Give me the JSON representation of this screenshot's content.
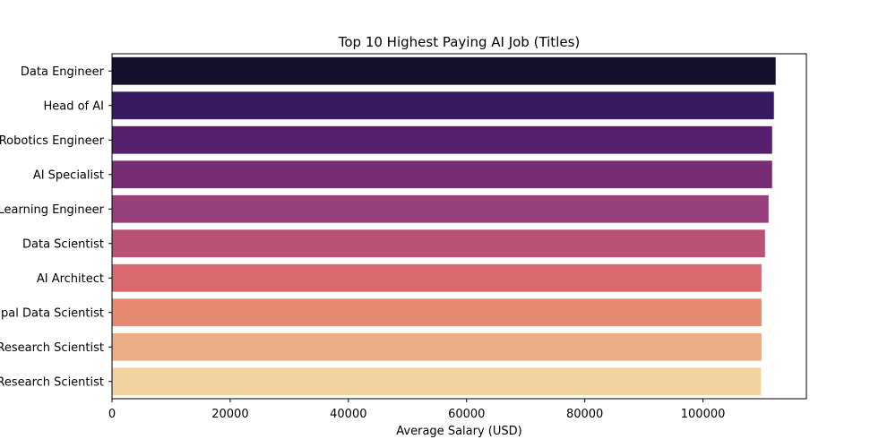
{
  "chart_data": {
    "type": "bar",
    "orientation": "horizontal",
    "title": "Top 10 Highest Paying AI Job (Titles)",
    "xlabel": "Average Salary (USD)",
    "ylabel": "",
    "xlim": [
      0,
      117500
    ],
    "xticks": [
      0,
      20000,
      40000,
      60000,
      80000,
      100000
    ],
    "grid": false,
    "categories": [
      "Data Engineer",
      "Head of AI",
      "Robotics Engineer",
      "AI Specialist",
      "Machine Learning Engineer",
      "Data Scientist",
      "AI Architect",
      "Principal Data Scientist",
      "AI Research Scientist",
      "Research Scientist"
    ],
    "values": [
      112300,
      112000,
      111700,
      111700,
      111100,
      110500,
      109900,
      109900,
      109900,
      109800
    ],
    "colors": [
      "#160f2c",
      "#361b5e",
      "#57206f",
      "#772d73",
      "#98407b",
      "#bb5273",
      "#d9686f",
      "#e58a71",
      "#ecac87",
      "#f1d3a2"
    ]
  }
}
